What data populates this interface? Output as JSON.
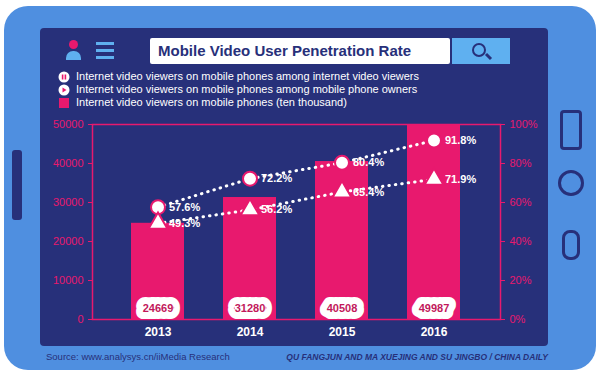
{
  "chart_data": {
    "type": "bar",
    "title": "Mobile Video User Penetration Rate",
    "categories": [
      "2013",
      "2014",
      "2015",
      "2016"
    ],
    "series": [
      {
        "name": "Internet video viewers on mobile phones among internet video viewers",
        "type": "line",
        "axis": "y2",
        "color": "#ffffff",
        "line_style": "dotted",
        "marker": "circle",
        "values": [
          57.6,
          72.2,
          80.4,
          91.8
        ],
        "value_labels": [
          "57.6%",
          "72.2%",
          "80.4%",
          "91.8%"
        ]
      },
      {
        "name": "Internet video viewers on mobile phones among mobile phone owners",
        "type": "line",
        "axis": "y2",
        "color": "#ffffff",
        "line_style": "dotted",
        "marker": "triangle",
        "values": [
          49.3,
          56.2,
          65.4,
          71.9
        ],
        "value_labels": [
          "49.3%",
          "56.2%",
          "65.4%",
          "71.9%"
        ]
      },
      {
        "name": "Internet video viewers on mobile phones (ten thousand)",
        "type": "bar",
        "color": "#e8196e",
        "values": [
          24669,
          31280,
          40508,
          49987
        ]
      }
    ],
    "ylim": [
      0,
      50000
    ],
    "yticks": [
      0,
      10000,
      20000,
      30000,
      40000,
      50000
    ],
    "y2lim": [
      0,
      100
    ],
    "y2ticks": [
      {
        "value": 0,
        "label": "0%"
      },
      {
        "value": 20,
        "label": "20%"
      },
      {
        "value": 40,
        "label": "40%"
      },
      {
        "value": 60,
        "label": "60%"
      },
      {
        "value": 80,
        "label": "80%"
      },
      {
        "value": 100,
        "label": "100%"
      }
    ],
    "data_labels": true,
    "legend": "top-left",
    "annotations": [
      "Source: www.analysys.cn/iiMedia Research",
      "QU FANGJUN AND MA XUEJING AND SU JINGBO / CHINA DAILY"
    ]
  }
}
